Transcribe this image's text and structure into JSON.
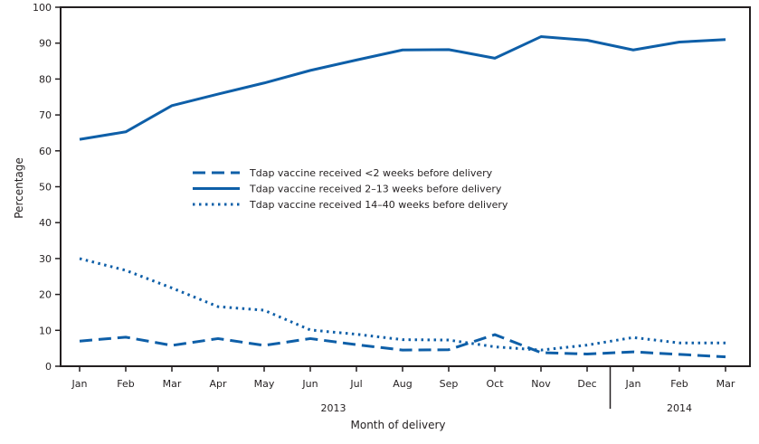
{
  "chart_data": {
    "type": "line",
    "title": "",
    "xlabel": "Month of delivery",
    "ylabel": "Percentage",
    "ylim": [
      0,
      100
    ],
    "yticks": [
      0,
      10,
      20,
      30,
      40,
      50,
      60,
      70,
      80,
      90,
      100
    ],
    "grid": false,
    "legend_position": "center-left",
    "color": "#0e5fa8",
    "categories": [
      "Jan",
      "Feb",
      "Mar",
      "Apr",
      "May",
      "Jun",
      "Jul",
      "Aug",
      "Sep",
      "Oct",
      "Nov",
      "Dec",
      "Jan",
      "Feb",
      "Mar"
    ],
    "year_groups": [
      {
        "label": "2013",
        "months": 12
      },
      {
        "label": "2014",
        "months": 3
      }
    ],
    "series": [
      {
        "name": "Tdap vaccine received <2 weeks before delivery",
        "style": "dashed",
        "values": [
          7.0,
          8.1,
          5.8,
          7.7,
          5.8,
          7.7,
          6.0,
          4.5,
          4.6,
          8.8,
          3.8,
          3.4,
          4.0,
          3.3,
          2.6
        ]
      },
      {
        "name": "Tdap vaccine received 2–13 weeks before delivery",
        "style": "solid",
        "values": [
          63.2,
          65.3,
          72.6,
          75.8,
          78.9,
          82.4,
          85.3,
          88.1,
          88.2,
          85.8,
          91.8,
          90.8,
          88.1,
          90.3,
          91.0
        ]
      },
      {
        "name": "Tdap vaccine received 14–40 weeks before delivery",
        "style": "dotted",
        "values": [
          30.0,
          26.7,
          21.8,
          16.6,
          15.6,
          10.1,
          8.9,
          7.4,
          7.3,
          5.4,
          4.5,
          5.9,
          8.0,
          6.5,
          6.5
        ]
      }
    ]
  }
}
